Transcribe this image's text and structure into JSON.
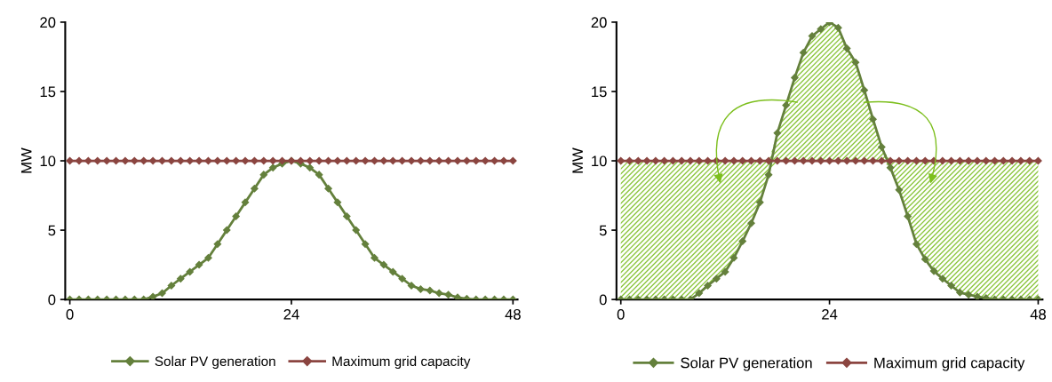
{
  "chart_data": [
    {
      "type": "line",
      "ylabel": "MW",
      "x": [
        0,
        1,
        2,
        3,
        4,
        5,
        6,
        7,
        8,
        9,
        10,
        11,
        12,
        13,
        14,
        15,
        16,
        17,
        18,
        19,
        20,
        21,
        22,
        23,
        24,
        25,
        26,
        27,
        28,
        29,
        30,
        31,
        32,
        33,
        34,
        35,
        36,
        37,
        38,
        39,
        40,
        41,
        42,
        43,
        44,
        45,
        46,
        47,
        48
      ],
      "series": [
        {
          "name": "Solar PV generation",
          "color": "#64803c",
          "values": [
            0,
            0,
            0,
            0,
            0,
            0,
            0,
            0,
            0,
            0.2,
            0.45,
            1.0,
            1.5,
            2.0,
            2.5,
            3.0,
            4.0,
            5.0,
            6.0,
            7.0,
            8.0,
            9.0,
            9.5,
            9.8,
            10,
            9.8,
            9.5,
            9.0,
            8.0,
            7.0,
            6.0,
            5.0,
            4.0,
            3.0,
            2.5,
            2.0,
            1.5,
            1.0,
            0.75,
            0.65,
            0.45,
            0.35,
            0.15,
            0.05,
            0,
            0,
            0,
            0,
            0
          ]
        },
        {
          "name": "Maximum grid capacity",
          "color": "#8b4540",
          "values": [
            10,
            10,
            10,
            10,
            10,
            10,
            10,
            10,
            10,
            10,
            10,
            10,
            10,
            10,
            10,
            10,
            10,
            10,
            10,
            10,
            10,
            10,
            10,
            10,
            10,
            10,
            10,
            10,
            10,
            10,
            10,
            10,
            10,
            10,
            10,
            10,
            10,
            10,
            10,
            10,
            10,
            10,
            10,
            10,
            10,
            10,
            10,
            10,
            10
          ]
        }
      ],
      "xlim": [
        -0.5,
        48.5
      ],
      "xticks": [
        0,
        24,
        48
      ],
      "ylim": [
        0,
        20
      ],
      "yticks": [
        0,
        5,
        10,
        15,
        20
      ],
      "grid": false,
      "legend": "bottom",
      "marker": "diamond",
      "line_style": "solid"
    },
    {
      "type": "line",
      "ylabel": "MW",
      "x": [
        0,
        1,
        2,
        3,
        4,
        5,
        6,
        7,
        8,
        9,
        10,
        11,
        12,
        13,
        14,
        15,
        16,
        17,
        18,
        19,
        20,
        21,
        22,
        23,
        24,
        25,
        26,
        27,
        28,
        29,
        30,
        31,
        32,
        33,
        34,
        35,
        36,
        37,
        38,
        39,
        40,
        41,
        42,
        43,
        44,
        45,
        46,
        47,
        48
      ],
      "series": [
        {
          "name": "Solar PV generation",
          "color": "#64803c",
          "values": [
            0,
            0,
            0,
            0,
            0,
            0,
            0,
            0,
            0,
            0.45,
            1.0,
            1.5,
            2.0,
            3.0,
            4.2,
            5.5,
            7.0,
            9.0,
            12.0,
            14.0,
            16.0,
            17.8,
            19.0,
            19.5,
            20.0,
            19.6,
            18.1,
            17.1,
            15.1,
            13.0,
            11.0,
            9.5,
            7.9,
            6.0,
            4.0,
            2.9,
            2.05,
            1.5,
            1.0,
            0.5,
            0.35,
            0.2,
            0.1,
            0,
            0,
            0,
            0,
            0,
            0
          ],
          "lower": [
            0,
            0,
            0,
            0,
            0,
            0,
            0,
            0,
            0,
            0.45,
            1.0,
            1.5,
            2.0,
            3.0,
            4.2,
            5.5,
            7.0,
            9.0,
            10,
            10,
            10,
            10,
            10,
            10,
            10,
            10,
            10,
            10,
            10,
            10,
            10,
            9.5,
            7.9,
            6.0,
            4.0,
            2.9,
            2.05,
            1.5,
            1.0,
            0.5,
            0.35,
            0.2,
            0.1,
            0,
            0,
            0,
            0,
            0,
            0
          ],
          "upper": [
            10,
            10,
            10,
            10,
            10,
            10,
            10,
            10,
            10,
            10,
            10,
            10,
            10,
            10,
            10,
            10,
            10,
            10,
            12.0,
            14.0,
            16.0,
            17.8,
            19.0,
            19.5,
            20.0,
            19.6,
            18.1,
            17.1,
            15.1,
            13.0,
            11.0,
            10,
            10,
            10,
            10,
            10,
            10,
            10,
            10,
            10,
            10,
            10,
            10,
            10,
            10,
            10,
            10,
            10,
            10
          ]
        },
        {
          "name": "Maximum grid capacity",
          "color": "#8b4540",
          "values": [
            10,
            10,
            10,
            10,
            10,
            10,
            10,
            10,
            10,
            10,
            10,
            10,
            10,
            10,
            10,
            10,
            10,
            10,
            10,
            10,
            10,
            10,
            10,
            10,
            10,
            10,
            10,
            10,
            10,
            10,
            10,
            10,
            10,
            10,
            10,
            10,
            10,
            10,
            10,
            10,
            10,
            10,
            10,
            10,
            10,
            10,
            10,
            10,
            10
          ]
        }
      ],
      "xlim": [
        -0.5,
        48.5
      ],
      "xticks": [
        0,
        24,
        48
      ],
      "ylim": [
        0,
        20
      ],
      "yticks": [
        0,
        5,
        10,
        15,
        20
      ],
      "grid": false,
      "legend": "bottom",
      "marker": "diamond",
      "line_style": "solid"
    }
  ]
}
